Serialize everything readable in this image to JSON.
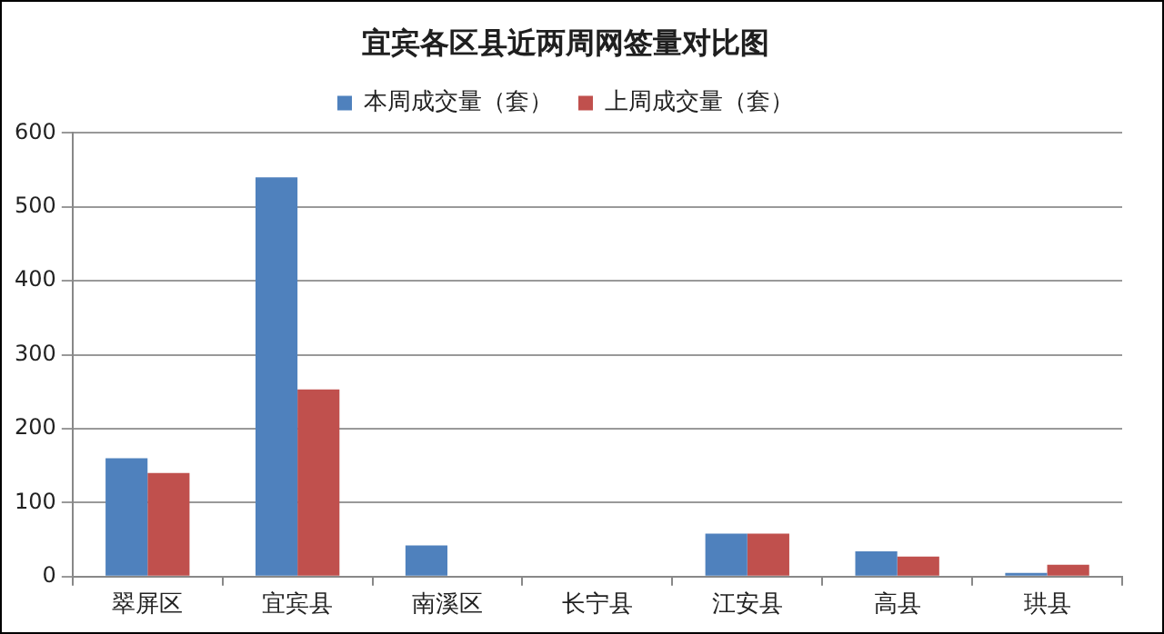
{
  "chart_data": {
    "type": "bar",
    "title": "宜宾各区县近两周网签量对比图",
    "categories": [
      "翠屏区",
      "宜宾县",
      "南溪区",
      "长宁县",
      "江安县",
      "高县",
      "珙县"
    ],
    "series": [
      {
        "name": "本周成交量（套）",
        "color": "#4f81bd",
        "values": [
          160,
          540,
          42,
          0,
          58,
          34,
          5
        ]
      },
      {
        "name": "上周成交量（套）",
        "color": "#c0504d",
        "values": [
          140,
          253,
          0,
          0,
          58,
          27,
          16
        ]
      }
    ],
    "ylim": [
      0,
      600
    ],
    "yticks": [
      0,
      100,
      200,
      300,
      400,
      500,
      600
    ],
    "grid": "y",
    "legend": "top"
  }
}
